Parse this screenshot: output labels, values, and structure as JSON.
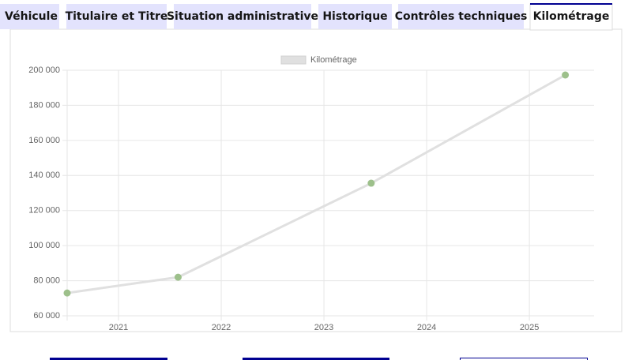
{
  "tabs": [
    "Véhicule",
    "Titulaire et Titre",
    "Situation administrative",
    "Historique",
    "Contrôles techniques",
    "Kilométrage"
  ],
  "active_tab": 5,
  "chart_data": {
    "type": "line",
    "x": [
      2020.5,
      2021.58,
      2023.46,
      2025.35
    ],
    "series": [
      {
        "name": "Kilométrage",
        "color": "#e0e0e0",
        "point_color": "#9dc08b",
        "values": [
          73000,
          82000,
          135600,
          197300
        ]
      }
    ],
    "xlim": [
      2020.5,
      2025.63
    ],
    "xticks": [
      2021,
      2022,
      2023,
      2024,
      2025
    ],
    "ylim": [
      60000,
      200000
    ],
    "yticks": [
      {
        "value": 60000,
        "label": "60 000"
      },
      {
        "value": 80000,
        "label": "80 000"
      },
      {
        "value": 100000,
        "label": "100 000"
      },
      {
        "value": 120000,
        "label": "120 000"
      },
      {
        "value": 140000,
        "label": "140 000"
      },
      {
        "value": 160000,
        "label": "160 000"
      },
      {
        "value": 180000,
        "label": "180 000"
      },
      {
        "value": 200000,
        "label": "200 000"
      }
    ],
    "grid": true,
    "legend": "top"
  }
}
